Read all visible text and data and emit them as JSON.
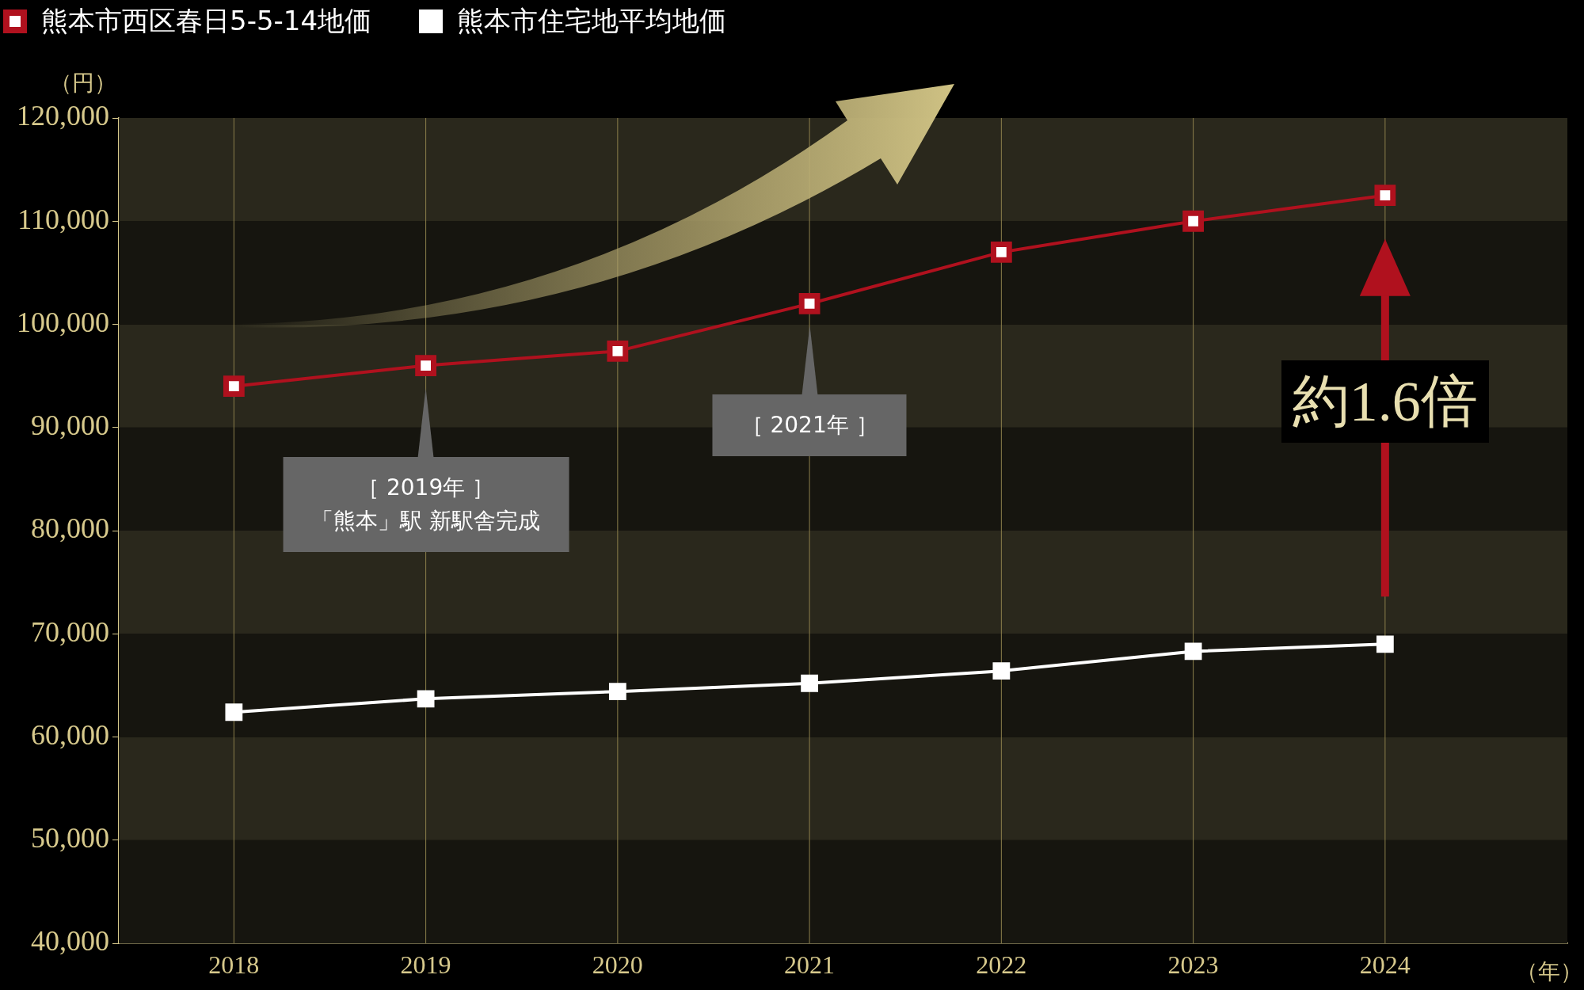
{
  "chart_data": {
    "type": "line",
    "ylabel": "（円）",
    "xlabel": "（年）",
    "x": [
      2018,
      2019,
      2020,
      2021,
      2022,
      2023,
      2024
    ],
    "series": [
      {
        "name": "熊本市西区春日5-5-14地価",
        "color": "#b0111e",
        "values": [
          94000,
          96000,
          97400,
          102000,
          107000,
          110000,
          112500
        ]
      },
      {
        "name": "熊本市住宅地平均地価",
        "color": "#ffffff",
        "values": [
          62400,
          63700,
          64400,
          65200,
          66400,
          68300,
          69000
        ]
      }
    ],
    "xlim": [
      2017.4,
      2024.95
    ],
    "xticks": [
      2018,
      2019,
      2020,
      2021,
      2022,
      2023,
      2024
    ],
    "ylim": [
      40000,
      120000
    ],
    "yticks": [
      {
        "value": 40000,
        "label": "40,000"
      },
      {
        "value": 50000,
        "label": "50,000"
      },
      {
        "value": 60000,
        "label": "60,000"
      },
      {
        "value": 70000,
        "label": "70,000"
      },
      {
        "value": 80000,
        "label": "80,000"
      },
      {
        "value": 90000,
        "label": "90,000"
      },
      {
        "value": 100000,
        "label": "100,000"
      },
      {
        "value": 110000,
        "label": "110,000"
      },
      {
        "value": 120000,
        "label": "120,000"
      }
    ],
    "grid": true,
    "legend": "top left",
    "marker": "square",
    "line_style": "solid",
    "annotations": [
      "［ 2019年 ］",
      "「熊本」駅 新駅舎完成",
      "［ 2021年 ］",
      "約1.6倍"
    ]
  }
}
